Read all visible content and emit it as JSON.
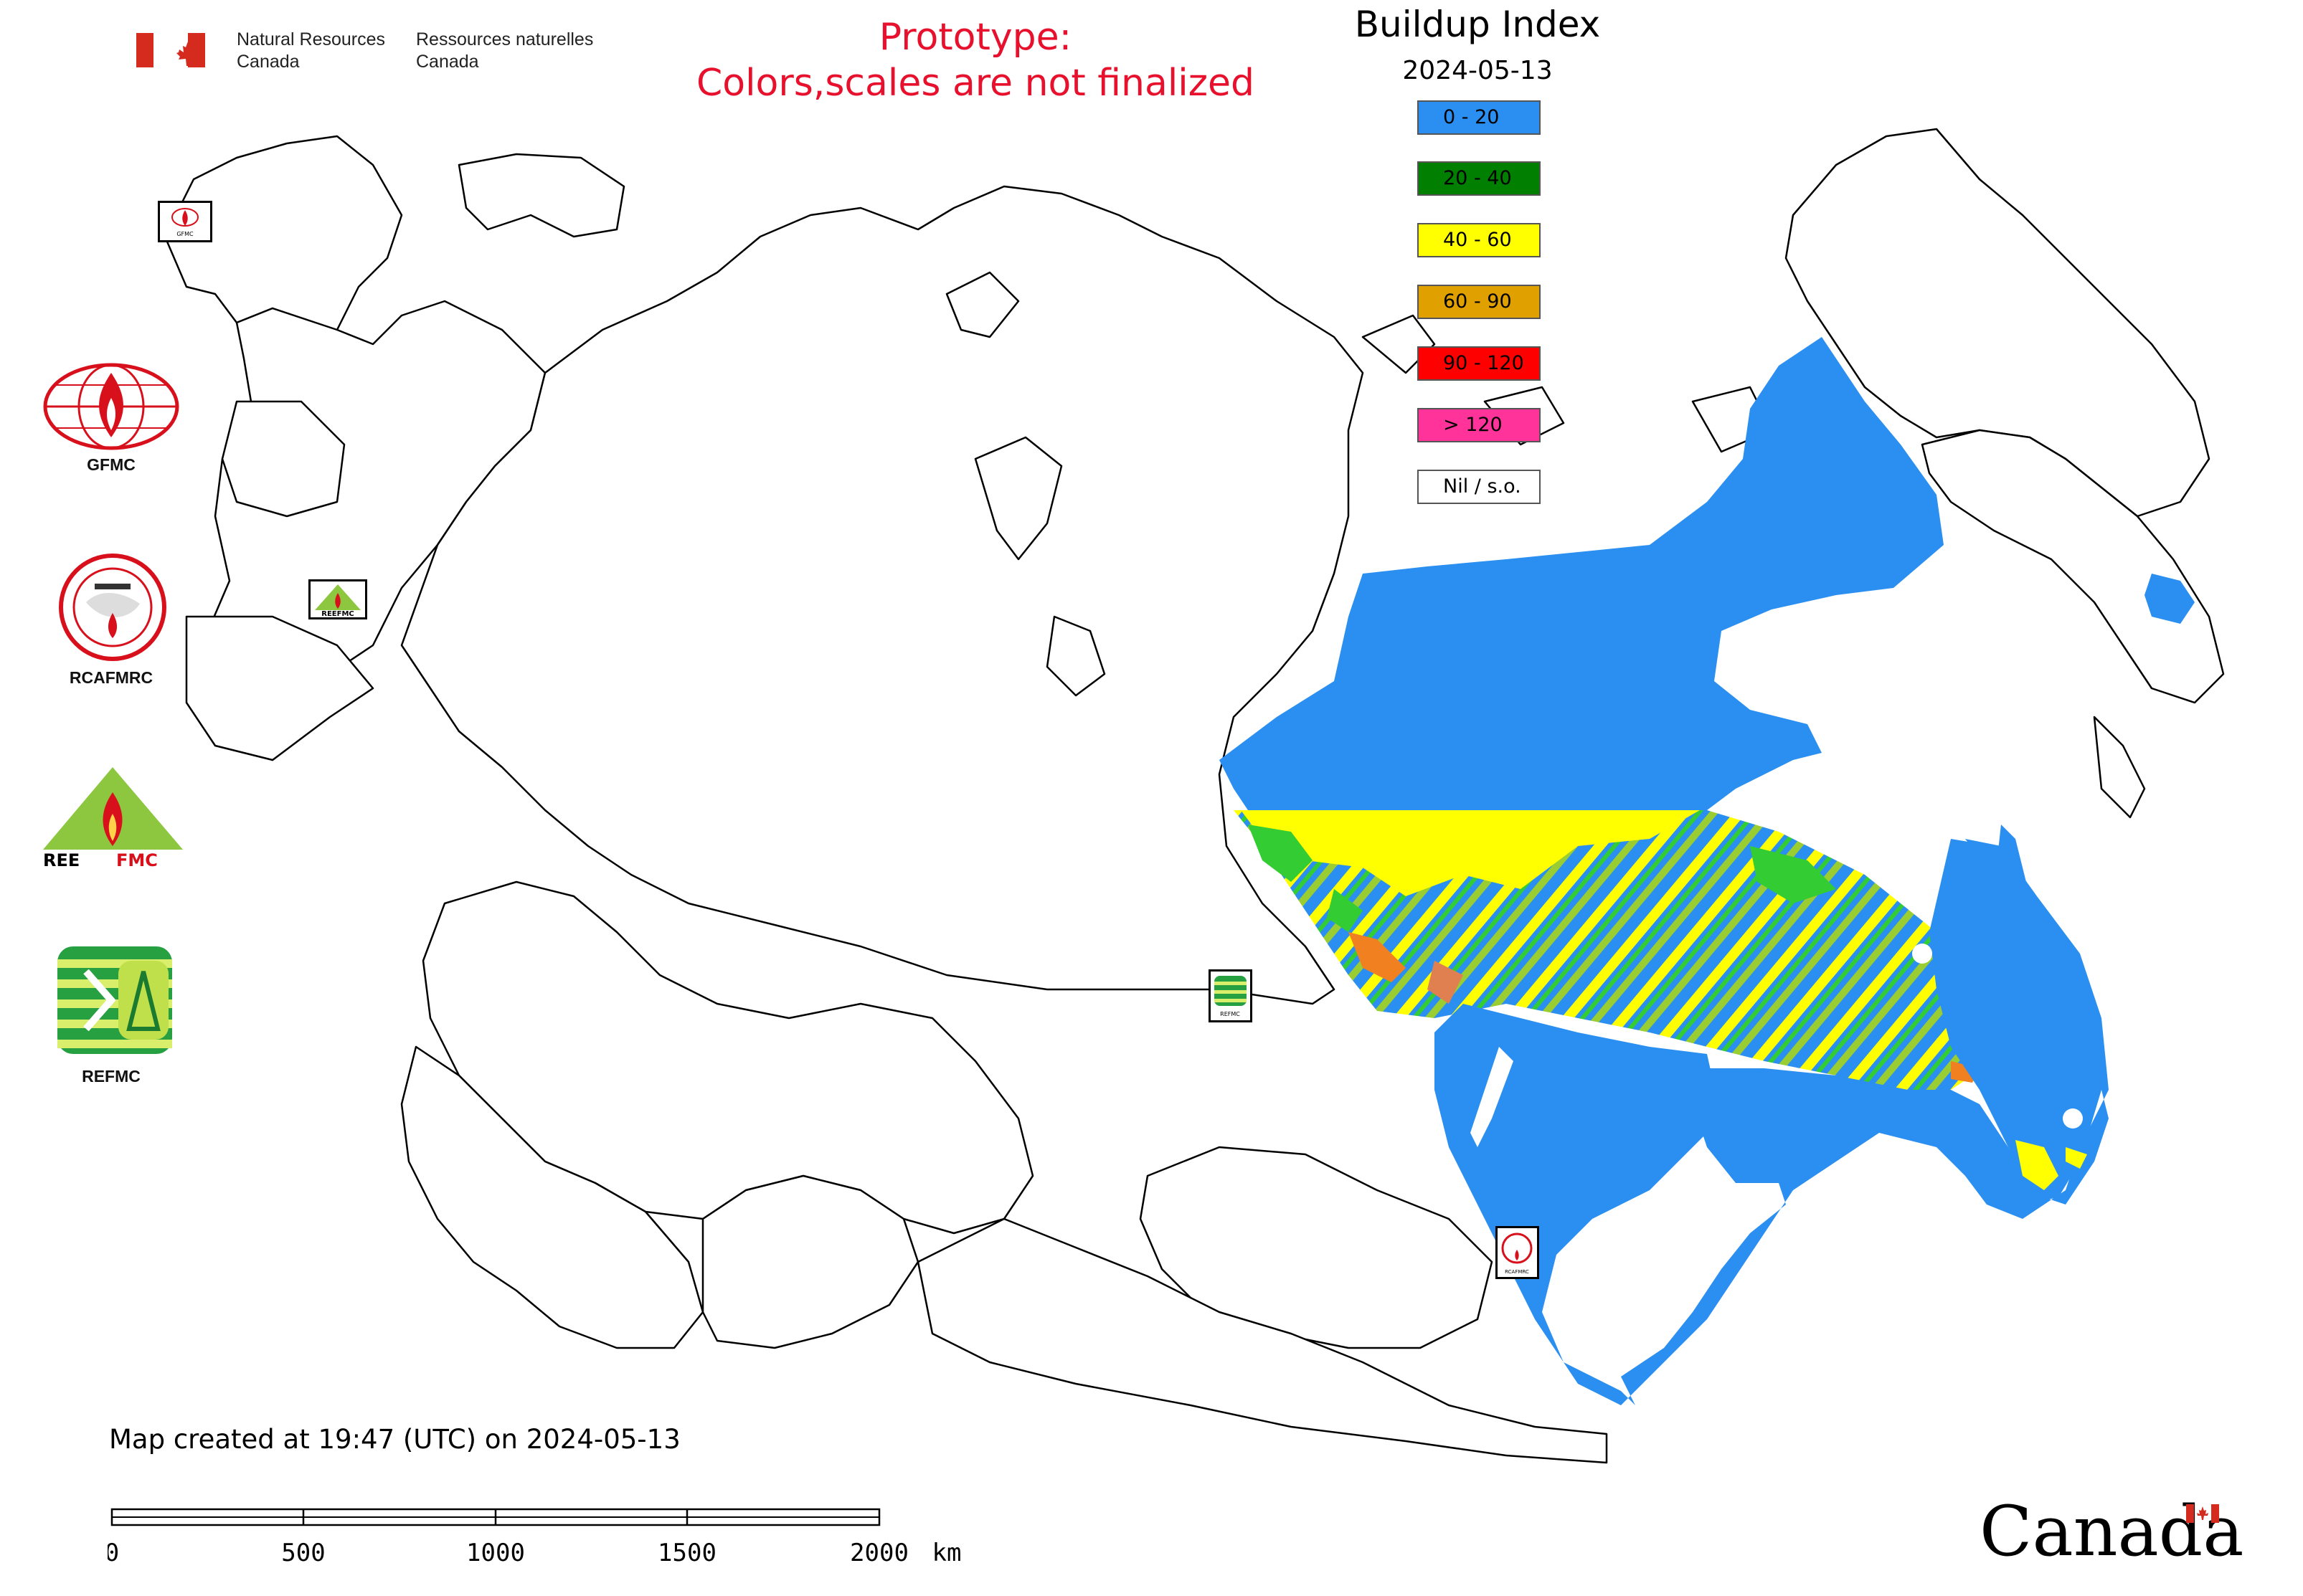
{
  "header": {
    "department_en": "Natural Resources\nCanada",
    "department_fr": "Ressources naturelles\nCanada"
  },
  "prototype_notice": {
    "line1": "Prototype:",
    "line2": "Colors,scales are not finalized"
  },
  "legend": {
    "title": "Buildup Index",
    "date": "2024-05-13",
    "items": [
      {
        "label": "0 - 20",
        "color": "#2a8ff0"
      },
      {
        "label": "20 - 40",
        "color": "#007f00"
      },
      {
        "label": "40 - 60",
        "color": "#ffff00"
      },
      {
        "label": "60 - 90",
        "color": "#e0a000"
      },
      {
        "label": "90 - 120",
        "color": "#ff0000"
      },
      {
        "label": "> 120",
        "color": "#ff3399"
      },
      {
        "label": "Nil / s.o.",
        "color": "#ffffff"
      }
    ]
  },
  "organizations": [
    {
      "name": "GFMC",
      "icon": "gfmc-logo-icon"
    },
    {
      "name": "RCAFMRC",
      "icon": "rcafmrc-logo-icon"
    },
    {
      "name": "REEFMC",
      "icon": "reefmc-logo-icon"
    },
    {
      "name": "REFMC",
      "icon": "refmc-logo-icon"
    }
  ],
  "map_markers": [
    {
      "label": "GFMC",
      "icon": "gfmc-marker-icon"
    },
    {
      "label": "REEFMC",
      "icon": "reefmc-marker-icon"
    },
    {
      "label": "REFMC",
      "icon": "refmc-marker-icon"
    },
    {
      "label": "RCAFMRC",
      "icon": "rcafmrc-marker-icon"
    }
  ],
  "created_text": "Map created at 19:47 (UTC) on 2024-05-13",
  "scale_bar": {
    "ticks": [
      "0",
      "500",
      "1000",
      "1500",
      "2000"
    ],
    "unit": "km"
  },
  "wordmark": "Canada"
}
